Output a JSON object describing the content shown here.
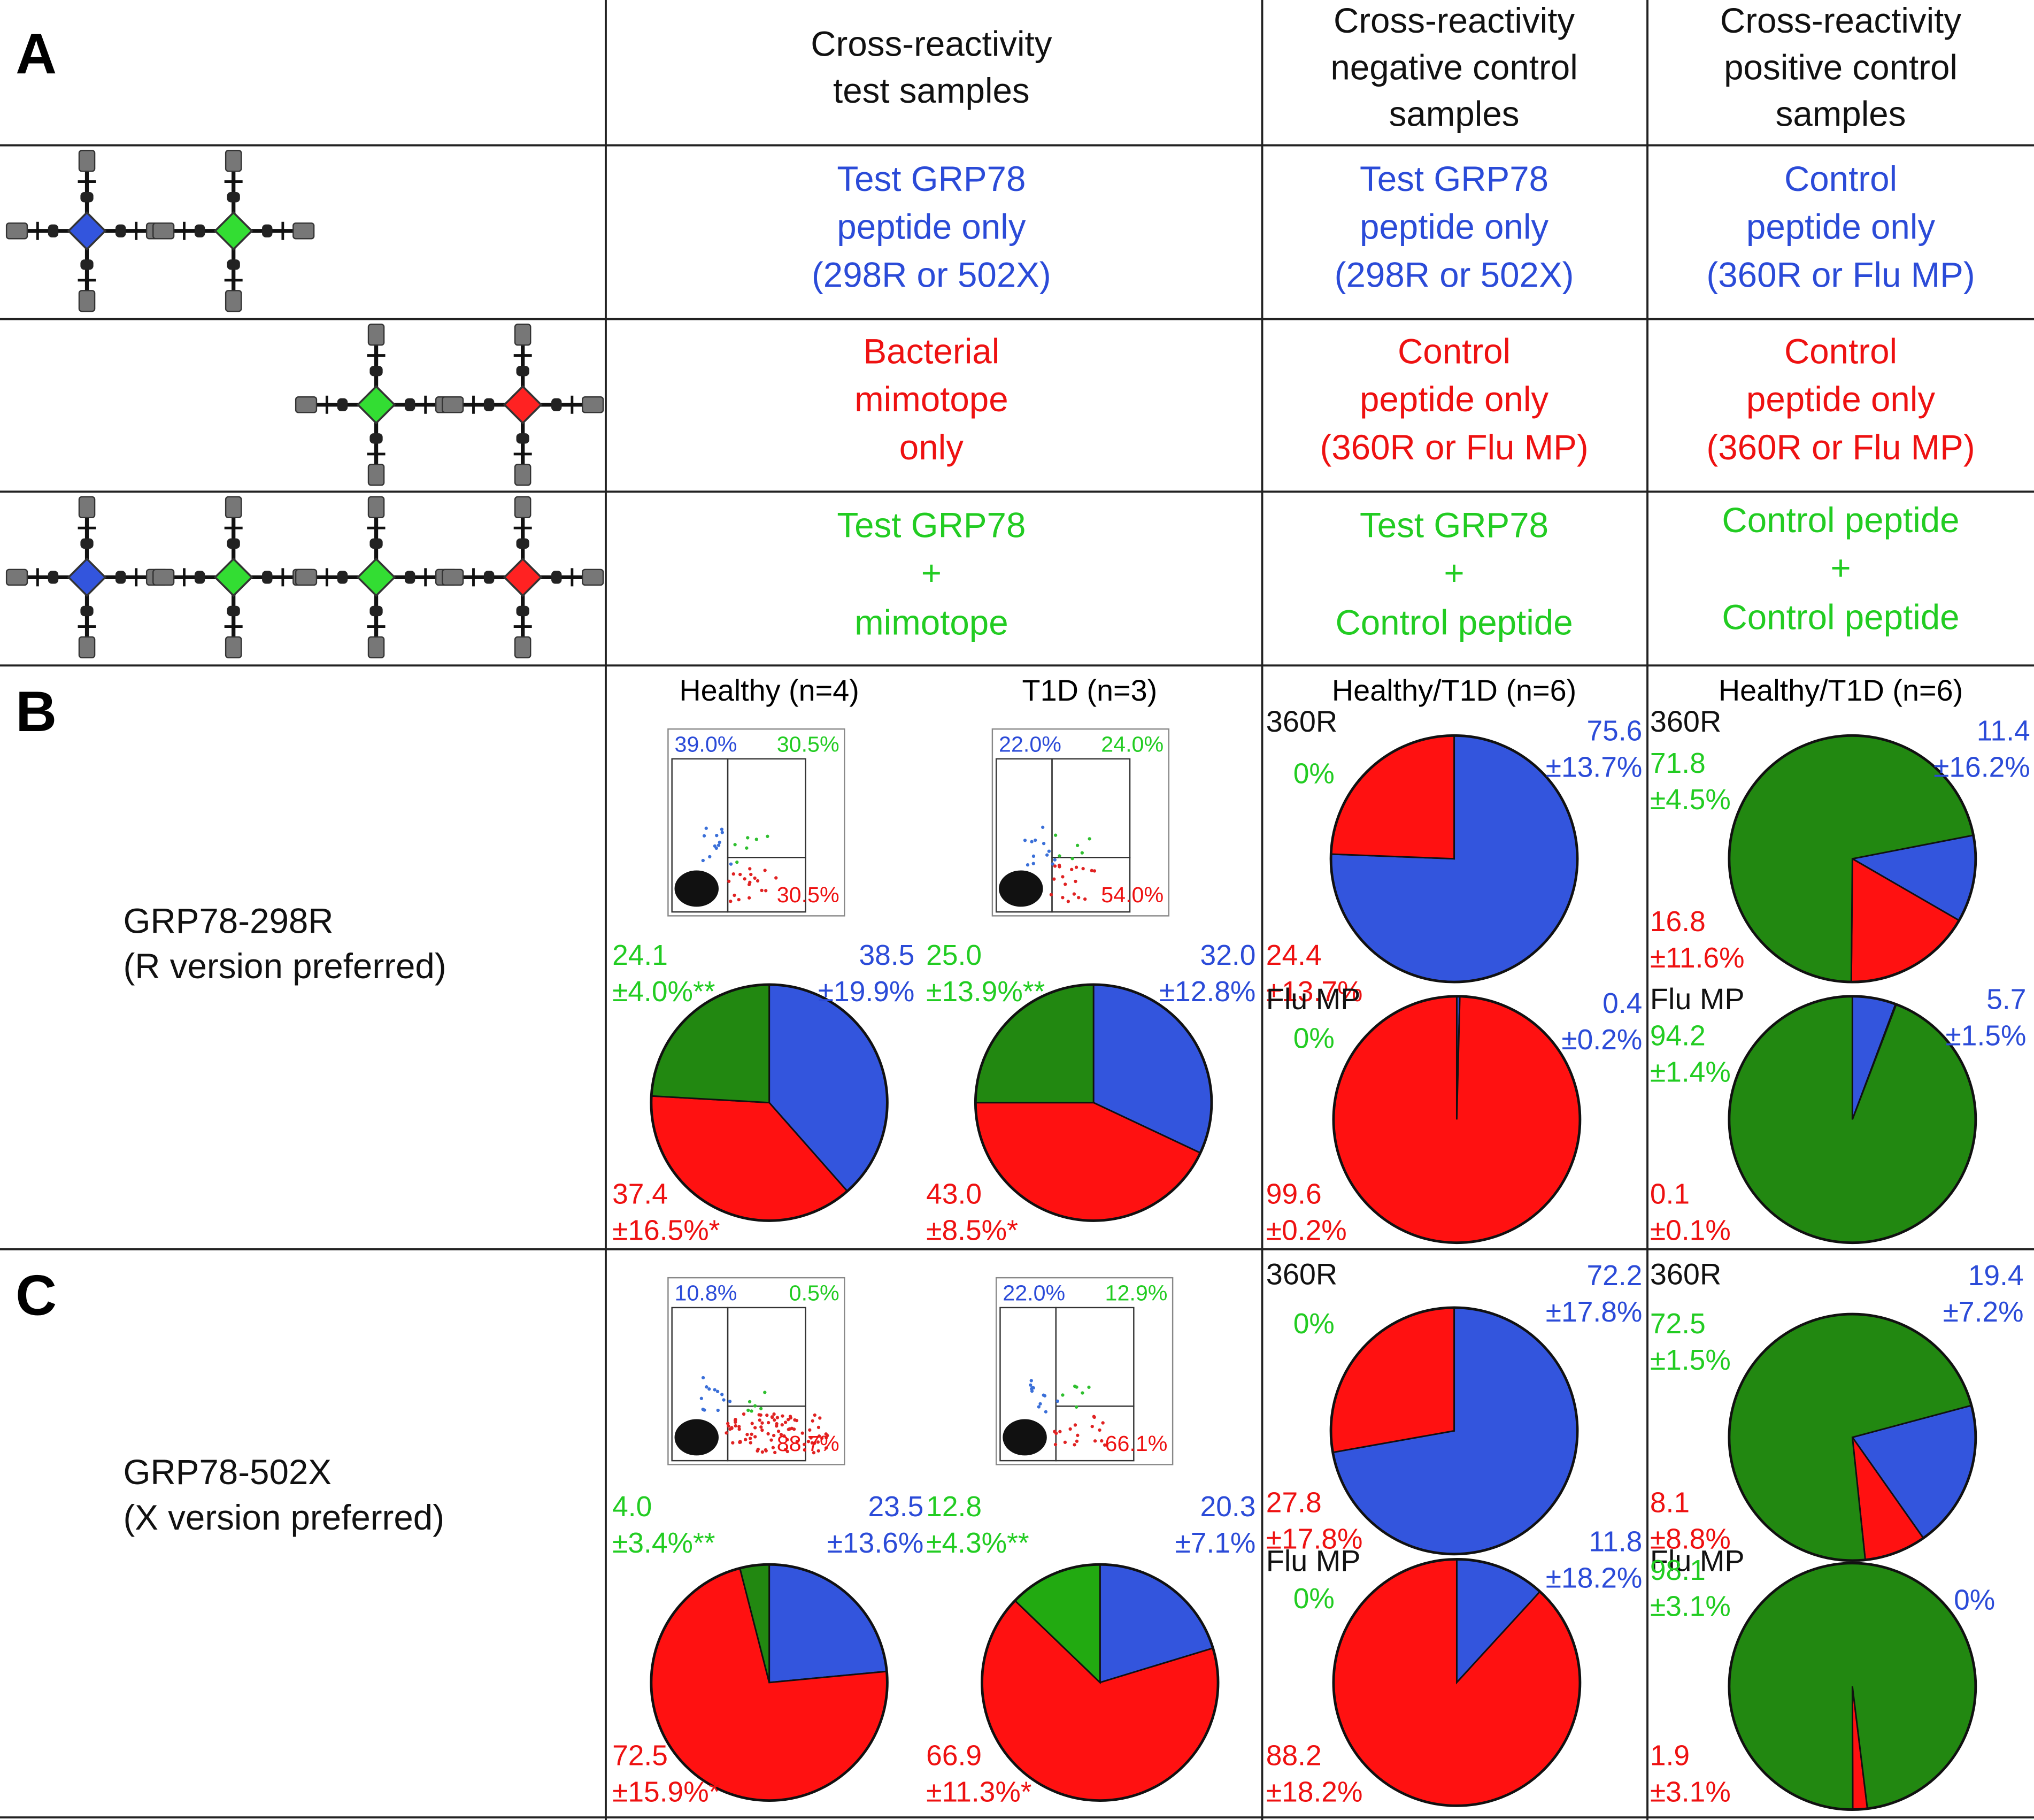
{
  "panel_labels": [
    "A",
    "B",
    "C"
  ],
  "table": {
    "headers": [
      [
        "Cross-reactivity",
        "test samples"
      ],
      [
        "Cross-reactivity",
        "negative control",
        "samples"
      ],
      [
        "Cross-reactivity",
        "positive control",
        "samples"
      ]
    ],
    "rows": [
      {
        "color": "#2b4bd8",
        "cells": [
          [
            "Test GRP78",
            "peptide only",
            "(298R or 502X)"
          ],
          [
            "Test GRP78",
            "peptide only",
            "(298R or 502X)"
          ],
          [
            "Control",
            "peptide only",
            "(360R or Flu MP)"
          ]
        ]
      },
      {
        "color": "#ee1111",
        "cells": [
          [
            "Bacterial",
            "mimotope",
            "only"
          ],
          [
            "Control",
            "peptide only",
            "(360R or Flu MP)"
          ],
          [
            "Control",
            "peptide only",
            "(360R or Flu MP)"
          ]
        ]
      },
      {
        "color": "#22cc22",
        "cells": [
          [
            "Test GRP78",
            "+",
            "mimotope"
          ],
          [
            "Test GRP78",
            "+",
            "Control peptide"
          ],
          [
            "Control peptide",
            "+",
            "Control peptide"
          ]
        ]
      }
    ]
  },
  "sections": [
    {
      "label": [
        "GRP78-298R",
        "(R version preferred)"
      ],
      "column_titles": [
        "Healthy (n=4)",
        "T1D (n=3)",
        "Healthy/T1D (n=6)",
        "Healthy/T1D (n=6)"
      ]
    },
    {
      "label": [
        "GRP78-502X",
        "(X version preferred)"
      ]
    }
  ],
  "flow_plots": [
    {
      "quadrants": [
        "39.0%",
        "30.5%",
        "30.5%"
      ]
    },
    {
      "quadrants": [
        "22.0%",
        "24.0%",
        "54.0%"
      ]
    },
    {
      "quadrants": [
        "10.8%",
        "0.5%",
        "88.7%"
      ]
    },
    {
      "quadrants": [
        "22.0%",
        "12.9%",
        "66.1%"
      ]
    }
  ],
  "chart_data": [
    {
      "type": "pie",
      "values": [
        38.5,
        37.4,
        24.1
      ],
      "errors": [
        "±19.9%",
        "±16.5%*",
        "±4.0%**"
      ],
      "colors": [
        "#3355dd",
        "#ff1111",
        "#228811"
      ]
    },
    {
      "type": "pie",
      "values": [
        32.0,
        43.0,
        25.0
      ],
      "value_labels": [
        "32.0",
        "43.0",
        "25.0"
      ],
      "errors": [
        "±12.8%",
        "±8.5%*",
        "±13.9%**"
      ],
      "colors": [
        "#3355dd",
        "#ff1111",
        "#228811"
      ]
    },
    {
      "type": "pie",
      "title": "360R",
      "values": [
        75.6,
        24.4,
        0
      ],
      "value_labels": [
        "75.6",
        "24.4",
        "0%"
      ],
      "errors": [
        "±13.7%",
        "±13.7%",
        null
      ],
      "colors": [
        "#3355dd",
        "#ff1111",
        "#228811"
      ]
    },
    {
      "type": "pie",
      "title": "Flu MP",
      "values": [
        0.4,
        99.6,
        0
      ],
      "value_labels": [
        "0.4",
        "99.6",
        "0%"
      ],
      "errors": [
        "±0.2%",
        "±0.2%",
        null
      ],
      "colors": [
        "#3355dd",
        "#ff1111",
        "#228811"
      ]
    },
    {
      "type": "pie",
      "title": "360R",
      "values": [
        11.4,
        16.8,
        71.8
      ],
      "errors": [
        "±16.2%",
        "±11.6%",
        "±4.5%"
      ],
      "colors": [
        "#3355dd",
        "#ff1111",
        "#228811"
      ]
    },
    {
      "type": "pie",
      "title": "Flu MP",
      "values": [
        5.7,
        0.1,
        94.2
      ],
      "errors": [
        "±1.5%",
        "±0.1%",
        "±1.4%"
      ],
      "colors": [
        "#3355dd",
        "#ff1111",
        "#228811"
      ]
    },
    {
      "type": "pie",
      "values": [
        23.5,
        72.5,
        4.0
      ],
      "value_labels": [
        "23.5",
        "72.5",
        "4.0"
      ],
      "errors": [
        "±13.6%",
        "±15.9%*",
        "±3.4%**"
      ],
      "colors": [
        "#3355dd",
        "#ff1111",
        "#228811"
      ]
    },
    {
      "type": "pie",
      "values": [
        20.3,
        66.9,
        12.8
      ],
      "errors": [
        "±7.1%",
        "±11.3%*",
        "±4.3%**"
      ],
      "colors": [
        "#3355dd",
        "#ff1111",
        "#22aa11"
      ]
    },
    {
      "type": "pie",
      "title": "360R",
      "values": [
        72.2,
        27.8,
        0
      ],
      "value_labels": [
        "72.2",
        "27.8",
        "0%"
      ],
      "errors": [
        "±17.8%",
        "±17.8%",
        null
      ],
      "colors": [
        "#3355dd",
        "#ff1111",
        "#228811"
      ]
    },
    {
      "type": "pie",
      "title": "Flu MP",
      "values": [
        11.8,
        88.2,
        0
      ],
      "value_labels": [
        "11.8",
        "88.2",
        "0%"
      ],
      "errors": [
        "±18.2%",
        "±18.2%",
        null
      ],
      "colors": [
        "#3355dd",
        "#ff1111",
        "#228811"
      ]
    },
    {
      "type": "pie",
      "title": "360R",
      "values": [
        19.4,
        8.1,
        72.5
      ],
      "errors": [
        "±7.2%",
        "±8.8%",
        "±1.5%"
      ],
      "colors": [
        "#3355dd",
        "#ff1111",
        "#228811"
      ]
    },
    {
      "type": "pie",
      "title": "Flu MP",
      "values": [
        0,
        1.9,
        98.1
      ],
      "value_labels": [
        "0%",
        "1.9",
        "98.1"
      ],
      "errors": [
        null,
        "±3.1%",
        "±3.1%"
      ],
      "colors": [
        "#3355dd",
        "#ff1111",
        "#228811"
      ]
    }
  ]
}
